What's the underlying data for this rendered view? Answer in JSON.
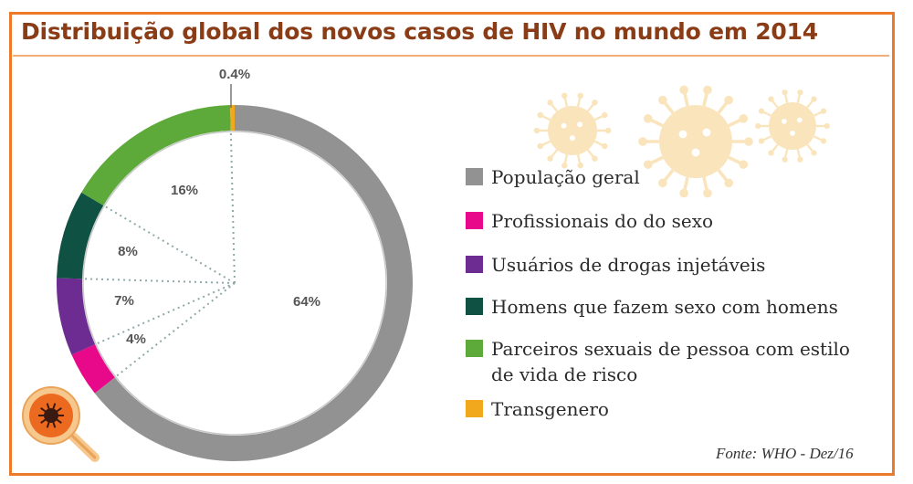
{
  "title": "Distribuição global dos novos casos de HIV no mundo em 2014",
  "source": "Fonte: WHO - Dez/16",
  "icons": {
    "virus_decoration": "virus-icon",
    "magnifier": "magnifier-virus-icon"
  },
  "chart_data": {
    "type": "pie",
    "style": "donut",
    "title": "Distribuição global dos novos casos de HIV no mundo em 2014",
    "series": [
      {
        "name": "População geral",
        "value": 64,
        "label": "64%",
        "color": "#929292"
      },
      {
        "name": "Profissionais do do sexo",
        "value": 4,
        "label": "4%",
        "color": "#e8098a"
      },
      {
        "name": "Usuários de drogas injetáveis",
        "value": 7,
        "label": "7%",
        "color": "#6c2c91"
      },
      {
        "name": "Homens que fazem sexo com homens",
        "value": 8,
        "label": "8%",
        "color": "#0f5142"
      },
      {
        "name": "Parceiros sexuais de pessoa com estilo de vida de risco",
        "value": 16,
        "label": "16%",
        "color": "#5daa3a"
      },
      {
        "name": "Transgenero",
        "value": 0.4,
        "label": "0.4%",
        "color": "#f2a81d"
      }
    ],
    "legend_position": "right"
  }
}
